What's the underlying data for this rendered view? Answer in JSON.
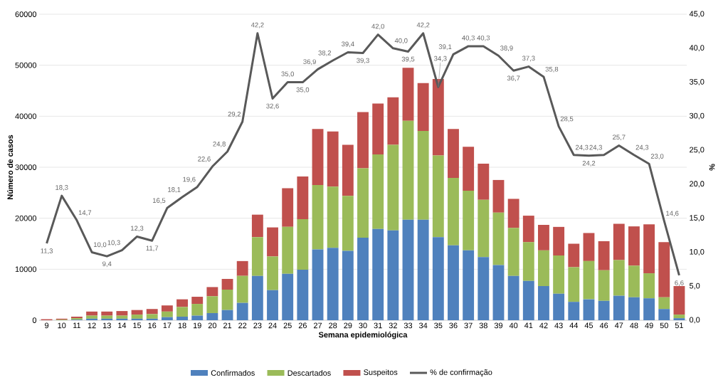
{
  "chart_data": {
    "type": "bar",
    "stacked": true,
    "xlabel": "Semana epidemiológica",
    "ylabel": "Número de casos",
    "y2label": "%",
    "categories": [
      "9",
      "10",
      "11",
      "12",
      "13",
      "14",
      "15",
      "16",
      "17",
      "18",
      "19",
      "20",
      "21",
      "22",
      "23",
      "24",
      "25",
      "26",
      "27",
      "28",
      "29",
      "30",
      "31",
      "32",
      "33",
      "34",
      "35",
      "36",
      "37",
      "38",
      "39",
      "40",
      "41",
      "42",
      "43",
      "44",
      "45",
      "46",
      "47",
      "48",
      "49",
      "50",
      "51"
    ],
    "series": [
      {
        "name": "Confirmados",
        "color": "#4f81bd",
        "values": [
          0,
          0,
          100,
          300,
          300,
          300,
          300,
          300,
          600,
          700,
          900,
          1400,
          2000,
          3400,
          8700,
          5900,
          9100,
          9900,
          13900,
          14200,
          13600,
          16200,
          17900,
          17600,
          19700,
          19700,
          16300,
          14700,
          13700,
          12400,
          10800,
          8700,
          7700,
          6700,
          5200,
          3600,
          4100,
          3800,
          4800,
          4500,
          4300,
          2200,
          400
        ]
      },
      {
        "name": "Descartados",
        "color": "#9bbb59",
        "values": [
          0,
          100,
          300,
          600,
          600,
          600,
          800,
          900,
          1100,
          1900,
          2300,
          3300,
          4000,
          5300,
          7600,
          6600,
          9200,
          9900,
          12600,
          12000,
          10800,
          13600,
          14600,
          16800,
          19400,
          17400,
          16000,
          13200,
          11700,
          11200,
          10300,
          9400,
          7600,
          7000,
          7500,
          6800,
          7500,
          6000,
          7000,
          6200,
          4900,
          2300,
          700
        ]
      },
      {
        "name": "Suspeitos",
        "color": "#c0504d",
        "values": [
          200,
          200,
          300,
          800,
          800,
          900,
          900,
          1000,
          1200,
          1500,
          1400,
          1800,
          2100,
          2900,
          4400,
          5700,
          7600,
          8400,
          11000,
          10800,
          10000,
          11000,
          10000,
          9300,
          10400,
          9400,
          15000,
          9600,
          8600,
          7100,
          6400,
          5700,
          5200,
          5000,
          5600,
          4600,
          5500,
          5700,
          7100,
          7700,
          9600,
          10800,
          5600
        ]
      },
      {
        "name": "% de confirmação",
        "type": "line",
        "axis": "y2",
        "color": "#595959",
        "marker": "none",
        "values": [
          11.3,
          18.3,
          14.7,
          10.0,
          9.4,
          10.3,
          12.3,
          11.7,
          16.5,
          18.1,
          19.6,
          22.6,
          24.8,
          29.2,
          42.2,
          32.6,
          35.0,
          35.0,
          36.9,
          38.2,
          39.4,
          39.3,
          42.0,
          40.0,
          39.5,
          42.2,
          34.3,
          39.1,
          40.3,
          40.3,
          38.9,
          36.7,
          37.3,
          35.8,
          28.5,
          24.3,
          24.2,
          24.3,
          25.7,
          24.3,
          23.0,
          14.6,
          6.6
        ],
        "value_labels": [
          "11,3",
          "18,3",
          "14,7",
          "10,0",
          "9,4",
          "10,3",
          "12,3",
          "11,7",
          "16,5",
          "18,1",
          "19,6",
          "22,6",
          "24,8",
          "29,2",
          "42,2",
          "32,6",
          "35,0",
          "35,0",
          "36,9",
          "38,2",
          "39,4",
          "39,3",
          "42,0",
          "40,0",
          "39,5",
          "42,2",
          "34,3",
          "39,1",
          "40,3",
          "40,3",
          "38,9",
          "36,7",
          "37,3",
          "35,8",
          "28,5",
          "24,3",
          "24,2",
          "24,3",
          "25,7",
          "24,3",
          "23,0",
          "14,6",
          "6,6"
        ]
      }
    ],
    "ylim": [
      0,
      60000
    ],
    "yticks": [
      0,
      10000,
      20000,
      30000,
      40000,
      50000,
      60000
    ],
    "y2lim": [
      0,
      45
    ],
    "y2ticks": [
      {
        "value": 0,
        "label": "0,0"
      },
      {
        "value": 5,
        "label": "5,0"
      },
      {
        "value": 10,
        "label": "10,0"
      },
      {
        "value": 15,
        "label": "15,0"
      },
      {
        "value": 20,
        "label": "20,0"
      },
      {
        "value": 25,
        "label": "25,0"
      },
      {
        "value": 30,
        "label": "30,0"
      },
      {
        "value": 35,
        "label": "35,0"
      },
      {
        "value": 40,
        "label": "40,0"
      },
      {
        "value": 45,
        "label": "45,0"
      }
    ],
    "grid": "y",
    "legend": "bottom"
  }
}
